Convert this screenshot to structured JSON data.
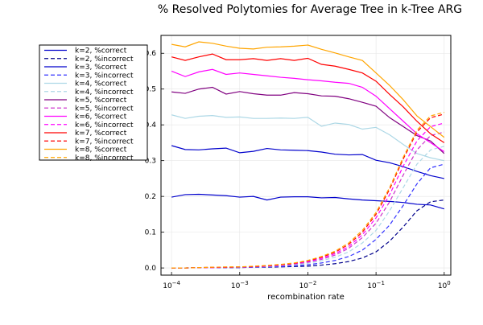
{
  "chart_data": {
    "type": "line",
    "title": "% Resolved Polytomies for Average Tree in k-Tree ARG",
    "xlabel": "recombination rate",
    "ylabel": "",
    "x_scale": "log10",
    "xlim": [
      7e-05,
      1.25
    ],
    "ylim": [
      -0.02,
      0.65
    ],
    "grid": true,
    "legend_position": "top-left, outside plot area",
    "x_ticks": [
      {
        "value": 0.0001,
        "base": "10",
        "exp": "−4"
      },
      {
        "value": 0.001,
        "base": "10",
        "exp": "−3"
      },
      {
        "value": 0.01,
        "base": "10",
        "exp": "−2"
      },
      {
        "value": 0.1,
        "base": "10",
        "exp": "−1"
      },
      {
        "value": 1,
        "base": "10",
        "exp": "0"
      }
    ],
    "y_ticks": [
      {
        "value": 0.0,
        "label": "0.0"
      },
      {
        "value": 0.1,
        "label": "0.1"
      },
      {
        "value": 0.2,
        "label": "0.2"
      },
      {
        "value": 0.3,
        "label": "0.3"
      },
      {
        "value": 0.4,
        "label": "0.4"
      },
      {
        "value": 0.5,
        "label": "0.5"
      },
      {
        "value": 0.6,
        "label": "0.6"
      }
    ],
    "x": [
      0.0001,
      0.0001585,
      0.0002512,
      0.0003981,
      0.000631,
      0.001,
      0.001585,
      0.002512,
      0.003981,
      0.00631,
      0.01,
      0.01585,
      0.02512,
      0.03981,
      0.0631,
      0.1,
      0.1585,
      0.2512,
      0.3981,
      0.631,
      1.0
    ],
    "series": [
      {
        "name": "k=2, %correct",
        "color": "#0000cc",
        "dash": "solid",
        "values": [
          0.198,
          0.205,
          0.206,
          0.204,
          0.202,
          0.198,
          0.2,
          0.19,
          0.198,
          0.199,
          0.199,
          0.196,
          0.197,
          0.193,
          0.19,
          0.188,
          0.186,
          0.183,
          0.178,
          0.176,
          0.165
        ]
      },
      {
        "name": "k=2, %incorrect",
        "color": "#00008b",
        "dash": "dashed",
        "values": [
          0.0,
          0.0,
          0.001,
          0.001,
          0.001,
          0.001,
          0.002,
          0.002,
          0.003,
          0.004,
          0.005,
          0.008,
          0.012,
          0.018,
          0.028,
          0.045,
          0.075,
          0.115,
          0.16,
          0.185,
          0.19
        ]
      },
      {
        "name": "k=3, %correct",
        "color": "#0000cc",
        "dash": "solid",
        "values": [
          0.342,
          0.331,
          0.33,
          0.333,
          0.335,
          0.322,
          0.326,
          0.334,
          0.33,
          0.329,
          0.328,
          0.324,
          0.318,
          0.316,
          0.317,
          0.301,
          0.294,
          0.283,
          0.27,
          0.258,
          0.25
        ]
      },
      {
        "name": "k=3, %incorrect",
        "color": "#3333ff",
        "dash": "dashed",
        "values": [
          0.0,
          0.0,
          0.001,
          0.001,
          0.001,
          0.001,
          0.002,
          0.003,
          0.004,
          0.006,
          0.009,
          0.014,
          0.021,
          0.032,
          0.05,
          0.08,
          0.12,
          0.175,
          0.235,
          0.28,
          0.29
        ]
      },
      {
        "name": "k=4, %correct",
        "color": "#add8e6",
        "dash": "solid",
        "values": [
          0.428,
          0.418,
          0.424,
          0.426,
          0.421,
          0.422,
          0.418,
          0.418,
          0.419,
          0.418,
          0.421,
          0.396,
          0.405,
          0.401,
          0.388,
          0.393,
          0.372,
          0.345,
          0.32,
          0.308,
          0.3
        ]
      },
      {
        "name": "k=4, %incorrect",
        "color": "#add8e6",
        "dash": "dashed",
        "values": [
          0.0,
          0.0,
          0.001,
          0.001,
          0.002,
          0.002,
          0.003,
          0.004,
          0.006,
          0.009,
          0.013,
          0.02,
          0.03,
          0.045,
          0.07,
          0.105,
          0.16,
          0.225,
          0.29,
          0.33,
          0.34
        ]
      },
      {
        "name": "k=5, %correct",
        "color": "#800080",
        "dash": "solid",
        "values": [
          0.492,
          0.488,
          0.5,
          0.505,
          0.486,
          0.493,
          0.487,
          0.483,
          0.483,
          0.49,
          0.487,
          0.481,
          0.48,
          0.473,
          0.463,
          0.452,
          0.42,
          0.395,
          0.37,
          0.355,
          0.32
        ]
      },
      {
        "name": "k=5, %incorrect",
        "color": "#cc33cc",
        "dash": "dashed",
        "values": [
          0.0,
          0.0,
          0.001,
          0.001,
          0.002,
          0.002,
          0.003,
          0.005,
          0.007,
          0.011,
          0.016,
          0.024,
          0.036,
          0.055,
          0.085,
          0.125,
          0.185,
          0.26,
          0.33,
          0.37,
          0.38
        ]
      },
      {
        "name": "k=6, %correct",
        "color": "#ff00ff",
        "dash": "solid",
        "values": [
          0.55,
          0.535,
          0.548,
          0.555,
          0.541,
          0.545,
          0.541,
          0.537,
          0.533,
          0.53,
          0.526,
          0.523,
          0.519,
          0.516,
          0.505,
          0.48,
          0.445,
          0.41,
          0.375,
          0.35,
          0.325
        ]
      },
      {
        "name": "k=6, %incorrect",
        "color": "#ff00ff",
        "dash": "dashed",
        "values": [
          0.0,
          0.0,
          0.001,
          0.001,
          0.002,
          0.003,
          0.004,
          0.005,
          0.008,
          0.012,
          0.018,
          0.027,
          0.04,
          0.06,
          0.093,
          0.14,
          0.205,
          0.285,
          0.355,
          0.395,
          0.405
        ]
      },
      {
        "name": "k=7, %correct",
        "color": "#ff0000",
        "dash": "solid",
        "values": [
          0.59,
          0.58,
          0.59,
          0.598,
          0.582,
          0.582,
          0.585,
          0.58,
          0.585,
          0.58,
          0.586,
          0.569,
          0.564,
          0.555,
          0.545,
          0.522,
          0.485,
          0.45,
          0.41,
          0.375,
          0.35
        ]
      },
      {
        "name": "k=7, %incorrect",
        "color": "#ff0000",
        "dash": "dashed",
        "values": [
          0.0,
          0.0,
          0.001,
          0.002,
          0.002,
          0.003,
          0.004,
          0.006,
          0.009,
          0.013,
          0.02,
          0.03,
          0.044,
          0.066,
          0.1,
          0.15,
          0.22,
          0.305,
          0.38,
          0.42,
          0.43
        ]
      },
      {
        "name": "k=8, %correct",
        "color": "#ffa500",
        "dash": "solid",
        "values": [
          0.625,
          0.618,
          0.632,
          0.628,
          0.62,
          0.614,
          0.612,
          0.617,
          0.618,
          0.62,
          0.623,
          0.611,
          0.601,
          0.59,
          0.58,
          0.545,
          0.51,
          0.47,
          0.425,
          0.395,
          0.365
        ]
      },
      {
        "name": "k=8, %incorrect",
        "color": "#ffa500",
        "dash": "dashed",
        "values": [
          0.0,
          0.0,
          0.001,
          0.002,
          0.003,
          0.003,
          0.005,
          0.007,
          0.01,
          0.014,
          0.021,
          0.032,
          0.047,
          0.07,
          0.105,
          0.155,
          0.225,
          0.31,
          0.385,
          0.425,
          0.435
        ]
      }
    ]
  }
}
